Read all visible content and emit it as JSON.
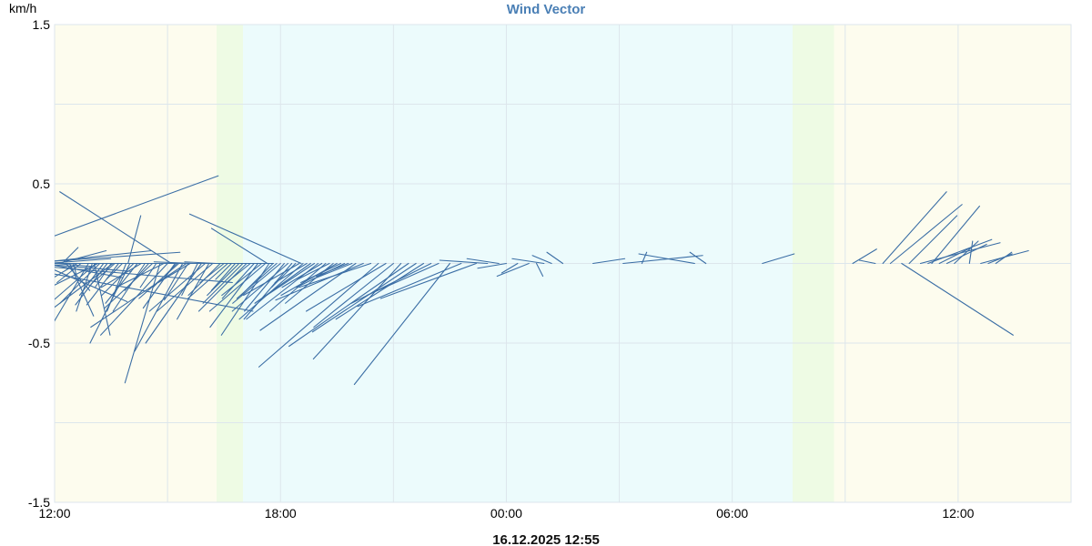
{
  "chart_data": {
    "type": "wind-vector",
    "title": "Wind Vector",
    "ylabel": "km/h",
    "footer": "16.12.2025 12:55",
    "xlim_hours": [
      0,
      27
    ],
    "ylim": [
      -1.5,
      1.5
    ],
    "y_ticks": [
      -1.5,
      -0.5,
      0.5,
      1.5
    ],
    "y_tick_labels": [
      "-1.5",
      "-0.5",
      "0.5",
      "1.5"
    ],
    "x_ticks": [
      {
        "h": 0,
        "label": "12:00"
      },
      {
        "h": 6,
        "label": "18:00"
      },
      {
        "h": 12,
        "label": "00:00"
      },
      {
        "h": 18,
        "label": "06:00"
      },
      {
        "h": 24,
        "label": "12:00"
      }
    ],
    "grid": true,
    "series": [
      {
        "color": "#3b6ea5",
        "vectors": [
          {
            "t": -2.0,
            "u": 1.5,
            "v": 0.55
          },
          {
            "t": -1.8,
            "u": 1.8,
            "v": 0.0
          },
          {
            "t": -1.5,
            "u": 1.6,
            "v": -0.3
          },
          {
            "t": -1.2,
            "u": 1.4,
            "v": -0.12
          },
          {
            "t": -0.9,
            "u": 1.0,
            "v": 0.07
          },
          {
            "t": -0.6,
            "u": 0.75,
            "v": 0.08
          },
          {
            "t": -0.5,
            "u": 0.6,
            "v": -0.05
          },
          {
            "t": -0.4,
            "u": 0.55,
            "v": -0.24
          },
          {
            "t": -0.3,
            "u": 0.5,
            "v": -0.09
          },
          {
            "t": -0.2,
            "u": 0.4,
            "v": 0.03
          },
          {
            "t": 0.0,
            "u": 0.25,
            "v": -0.02
          },
          {
            "t": 0.1,
            "u": 0.3,
            "v": 0.08
          },
          {
            "t": 0.2,
            "u": 0.1,
            "v": 0.1
          },
          {
            "t": 0.3,
            "u": 0.15,
            "v": -0.17
          },
          {
            "t": 0.4,
            "u": 0.15,
            "v": -0.33
          },
          {
            "t": 0.5,
            "u": 0.02,
            "v": -0.08
          },
          {
            "t": 0.6,
            "u": -0.4,
            "v": -0.24
          },
          {
            "t": 0.7,
            "u": -0.15,
            "v": -0.12
          },
          {
            "t": 0.9,
            "u": -0.55,
            "v": -0.93
          },
          {
            "t": 1.0,
            "u": -0.1,
            "v": -0.3
          },
          {
            "t": 1.05,
            "u": 0.1,
            "v": -0.45
          },
          {
            "t": 1.1,
            "u": -0.3,
            "v": -0.26
          },
          {
            "t": 1.15,
            "u": -0.4,
            "v": -0.2
          },
          {
            "t": 1.2,
            "u": -0.25,
            "v": -0.25
          },
          {
            "t": 1.3,
            "u": -0.15,
            "v": -0.2
          },
          {
            "t": 1.4,
            "u": -0.2,
            "v": -0.26
          },
          {
            "t": 1.5,
            "u": -0.1,
            "v": -0.15
          },
          {
            "t": 1.55,
            "u": -0.4,
            "v": -0.3
          },
          {
            "t": 1.6,
            "u": -0.15,
            "v": -0.13
          },
          {
            "t": 1.7,
            "u": -0.2,
            "v": -0.26
          },
          {
            "t": 1.8,
            "u": -0.1,
            "v": -0.1
          },
          {
            "t": 1.9,
            "u": -0.12,
            "v": -0.3
          },
          {
            "t": 1.95,
            "u": 0.08,
            "v": 0.3
          },
          {
            "t": 2.0,
            "u": -0.25,
            "v": -0.5
          },
          {
            "t": 2.1,
            "u": -0.2,
            "v": -0.2
          },
          {
            "t": 2.2,
            "u": -0.2,
            "v": -0.25
          },
          {
            "t": 2.3,
            "u": -0.25,
            "v": -0.15
          },
          {
            "t": 2.4,
            "u": -0.2,
            "v": -0.3
          },
          {
            "t": 2.5,
            "u": -0.15,
            "v": -0.17
          },
          {
            "t": 2.6,
            "u": -0.3,
            "v": -0.28
          },
          {
            "t": 2.7,
            "u": -0.1,
            "v": -0.15
          },
          {
            "t": 2.8,
            "u": -0.22,
            "v": -0.75
          },
          {
            "t": 2.9,
            "u": -0.3,
            "v": -0.15
          },
          {
            "t": 3.0,
            "u": -0.42,
            "v": -0.45
          },
          {
            "t": 3.05,
            "u": -0.4,
            "v": 0.0
          },
          {
            "t": 3.1,
            "u": -0.7,
            "v": 0.45
          },
          {
            "t": 3.2,
            "u": -0.2,
            "v": -0.28
          },
          {
            "t": 3.25,
            "u": -0.15,
            "v": -0.15
          },
          {
            "t": 3.3,
            "u": -0.25,
            "v": -0.22
          },
          {
            "t": 3.4,
            "u": -0.3,
            "v": -0.55
          },
          {
            "t": 3.5,
            "u": -0.6,
            "v": -0.4
          },
          {
            "t": 3.55,
            "u": -0.15,
            "v": -0.23
          },
          {
            "t": 3.6,
            "u": -0.2,
            "v": -0.12
          },
          {
            "t": 3.7,
            "u": -0.25,
            "v": 0.01
          },
          {
            "t": 3.8,
            "u": -0.1,
            "v": -0.2
          },
          {
            "t": 3.9,
            "u": -0.35,
            "v": -0.5
          },
          {
            "t": 4.0,
            "u": -0.35,
            "v": -0.3
          },
          {
            "t": 4.1,
            "u": -0.2,
            "v": -0.35
          },
          {
            "t": 4.2,
            "u": -0.35,
            "v": -0.3
          },
          {
            "t": 4.3,
            "u": -0.2,
            "v": 0.01
          },
          {
            "t": 4.4,
            "u": -0.2,
            "v": -0.2
          },
          {
            "t": 4.5,
            "u": -0.15,
            "v": -0.12
          },
          {
            "t": 4.6,
            "u": -0.25,
            "v": -0.22
          },
          {
            "t": 4.7,
            "u": -0.1,
            "v": -0.1
          },
          {
            "t": 4.8,
            "u": -0.15,
            "v": -0.17
          },
          {
            "t": 4.9,
            "u": -0.2,
            "v": -0.2
          },
          {
            "t": 5.0,
            "u": -0.25,
            "v": -0.25
          },
          {
            "t": 5.1,
            "u": -0.3,
            "v": -0.3
          },
          {
            "t": 5.2,
            "u": -0.15,
            "v": -0.12
          },
          {
            "t": 5.3,
            "u": -0.2,
            "v": -0.22
          },
          {
            "t": 5.4,
            "u": -0.3,
            "v": -0.4
          },
          {
            "t": 5.5,
            "u": -0.25,
            "v": -0.2
          },
          {
            "t": 5.6,
            "u": -0.35,
            "v": -0.3
          },
          {
            "t": 5.65,
            "u": -0.35,
            "v": 0.22
          },
          {
            "t": 5.7,
            "u": -0.3,
            "v": -0.45
          },
          {
            "t": 5.8,
            "u": -0.2,
            "v": -0.2
          },
          {
            "t": 5.9,
            "u": -0.25,
            "v": -0.22
          },
          {
            "t": 6.0,
            "u": -0.3,
            "v": -0.25
          },
          {
            "t": 6.1,
            "u": -0.25,
            "v": -0.3
          },
          {
            "t": 6.2,
            "u": -0.35,
            "v": -0.3
          },
          {
            "t": 6.3,
            "u": -0.3,
            "v": -0.35
          },
          {
            "t": 6.4,
            "u": -0.15,
            "v": -0.15
          },
          {
            "t": 6.5,
            "u": -0.35,
            "v": -0.2
          },
          {
            "t": 6.55,
            "u": -0.7,
            "v": 0.31
          },
          {
            "t": 6.6,
            "u": -0.4,
            "v": -0.35
          },
          {
            "t": 6.7,
            "u": -0.2,
            "v": -0.12
          },
          {
            "t": 6.8,
            "u": -0.35,
            "v": -0.25
          },
          {
            "t": 6.9,
            "u": -0.3,
            "v": -0.2
          },
          {
            "t": 7.0,
            "u": -0.45,
            "v": -0.35
          },
          {
            "t": 7.1,
            "u": -0.25,
            "v": -0.15
          },
          {
            "t": 7.2,
            "u": -0.35,
            "v": -0.3
          },
          {
            "t": 7.3,
            "u": -0.2,
            "v": -0.1
          },
          {
            "t": 7.4,
            "u": -0.3,
            "v": -0.25
          },
          {
            "t": 7.5,
            "u": -0.35,
            "v": -0.2
          },
          {
            "t": 7.6,
            "u": -0.25,
            "v": -0.12
          },
          {
            "t": 7.7,
            "u": -0.3,
            "v": -0.15
          },
          {
            "t": 7.8,
            "u": -0.2,
            "v": -0.08
          },
          {
            "t": 7.9,
            "u": -0.25,
            "v": -0.1
          },
          {
            "t": 8.0,
            "u": -0.6,
            "v": -0.42
          },
          {
            "t": 8.2,
            "u": -0.55,
            "v": -0.23
          },
          {
            "t": 8.4,
            "u": -0.45,
            "v": -0.15
          },
          {
            "t": 8.6,
            "u": -0.75,
            "v": -0.65
          },
          {
            "t": 8.8,
            "u": -0.5,
            "v": -0.3
          },
          {
            "t": 9.0,
            "u": -0.5,
            "v": -0.4
          },
          {
            "t": 9.2,
            "u": -0.55,
            "v": -0.6
          },
          {
            "t": 9.4,
            "u": -0.75,
            "v": -0.52
          },
          {
            "t": 9.6,
            "u": -0.65,
            "v": -0.43
          },
          {
            "t": 9.8,
            "u": -0.55,
            "v": -0.35
          },
          {
            "t": 10.0,
            "u": -0.5,
            "v": -0.25
          },
          {
            "t": 10.2,
            "u": -0.45,
            "v": -0.2
          },
          {
            "t": 10.5,
            "u": -0.6,
            "v": -0.76
          },
          {
            "t": 10.8,
            "u": -0.65,
            "v": -0.27
          },
          {
            "t": 11.2,
            "u": -0.6,
            "v": -0.22
          },
          {
            "t": 11.5,
            "u": -0.3,
            "v": 0.02
          },
          {
            "t": 11.8,
            "u": -0.2,
            "v": 0.03
          },
          {
            "t": 12.0,
            "u": -0.18,
            "v": -0.03
          },
          {
            "t": 12.3,
            "u": -0.1,
            "v": -0.06
          },
          {
            "t": 12.6,
            "u": -0.2,
            "v": -0.08
          },
          {
            "t": 12.8,
            "u": 0.04,
            "v": -0.08
          },
          {
            "t": 13.0,
            "u": -0.2,
            "v": 0.03
          },
          {
            "t": 13.2,
            "u": -0.12,
            "v": 0.05
          },
          {
            "t": 13.5,
            "u": -0.1,
            "v": 0.07
          },
          {
            "t": 14.3,
            "u": 0.2,
            "v": 0.03
          },
          {
            "t": 15.1,
            "u": 0.5,
            "v": 0.05
          },
          {
            "t": 15.6,
            "u": 0.03,
            "v": 0.07
          },
          {
            "t": 17.0,
            "u": -0.35,
            "v": 0.06
          },
          {
            "t": 17.3,
            "u": -0.1,
            "v": 0.07
          },
          {
            "t": 18.8,
            "u": 0.2,
            "v": 0.06
          },
          {
            "t": 21.2,
            "u": 0.15,
            "v": 0.09
          },
          {
            "t": 21.8,
            "u": -0.1,
            "v": 0.02
          },
          {
            "t": 22.0,
            "u": 0.4,
            "v": 0.45
          },
          {
            "t": 22.2,
            "u": 0.45,
            "v": 0.37
          },
          {
            "t": 22.5,
            "u": 0.7,
            "v": -0.45
          },
          {
            "t": 22.7,
            "u": 0.3,
            "v": 0.3
          },
          {
            "t": 23.0,
            "u": 0.5,
            "v": 0.13
          },
          {
            "t": 23.2,
            "u": 0.4,
            "v": 0.15
          },
          {
            "t": 23.3,
            "u": 0.3,
            "v": 0.36
          },
          {
            "t": 23.5,
            "u": 0.2,
            "v": 0.1
          },
          {
            "t": 23.7,
            "u": 0.25,
            "v": 0.12
          },
          {
            "t": 23.9,
            "u": 0.15,
            "v": 0.14
          },
          {
            "t": 24.3,
            "u": 0.02,
            "v": 0.14
          },
          {
            "t": 24.6,
            "u": 0.3,
            "v": 0.08
          },
          {
            "t": 24.8,
            "u": 0.15,
            "v": 0.06
          },
          {
            "t": 25.0,
            "u": 0.1,
            "v": 0.07
          }
        ]
      }
    ],
    "colors": {
      "line": "#3b6ea5",
      "grid": "#dde6ec",
      "day_band": "#fdfcee",
      "night_band": "#ecfbfc",
      "twilight": "#eefbe4",
      "title": "#4a7fb5",
      "axis_text": "#000000"
    },
    "background_bands": [
      {
        "from": 0,
        "to": 4.3,
        "kind": "day"
      },
      {
        "from": 4.3,
        "to": 5.0,
        "kind": "twilight-dusk"
      },
      {
        "from": 5.0,
        "to": 19.6,
        "kind": "night"
      },
      {
        "from": 19.6,
        "to": 20.7,
        "kind": "twilight-dawn"
      },
      {
        "from": 20.7,
        "to": 27,
        "kind": "day"
      }
    ]
  }
}
